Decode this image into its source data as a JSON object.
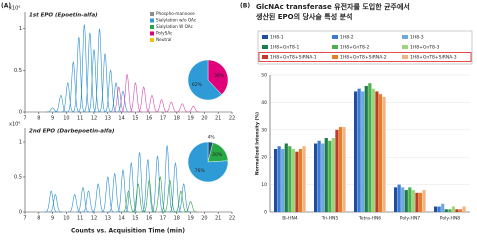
{
  "panel_a": {
    "label": "(A)",
    "x_label": "Counts vs. Acquisition Time (min)",
    "legend": [
      {
        "name": "Phospho-mannose",
        "color": "#8c8c8c"
      },
      {
        "name": "Sialylation w/o OAc",
        "color": "#2e9bd6"
      },
      {
        "name": "Sialylation W OAc",
        "color": "#27a844"
      },
      {
        "name": "PolySAc",
        "color": "#e0007a"
      },
      {
        "name": "Neutral",
        "color": "#f2c300"
      }
    ]
  },
  "panel_b": {
    "label": "(B)",
    "title": [
      "GlcNAc transferase 유전자를 도입한 균주에서",
      "생산된 EPO의 당사슬 특성 분석"
    ]
  },
  "chart_data": [
    {
      "type": "peaks",
      "title": "1st EPO (Epoetin-alfa)",
      "y_unit": "x10⁶",
      "xlim": [
        7,
        22
      ],
      "xticks": [
        7,
        8,
        9,
        10,
        11,
        12,
        13,
        14,
        15,
        16,
        17,
        18,
        19,
        20,
        21,
        22
      ],
      "ylim": [
        0,
        1.2
      ],
      "yticks": [
        0,
        0.5,
        1
      ],
      "series": [
        {
          "color": "#2a8fd0",
          "x": [
            9.0,
            9.6,
            10.1,
            10.5,
            10.9,
            11.3,
            11.7,
            12.0,
            12.4,
            12.8,
            13.2,
            13.6,
            14.1
          ],
          "values": [
            0.05,
            0.2,
            0.35,
            0.6,
            0.9,
            1.05,
            0.95,
            0.75,
            1.0,
            0.7,
            0.5,
            0.35,
            0.25
          ]
        },
        {
          "color": "#d24fb0",
          "x": [
            13.8,
            14.4,
            15.0,
            15.6,
            16.2,
            16.9,
            17.6,
            18.4,
            19.2
          ],
          "values": [
            0.3,
            0.45,
            0.35,
            0.3,
            0.2,
            0.15,
            0.12,
            0.1,
            0.07
          ]
        }
      ]
    },
    {
      "type": "peaks",
      "title": "2nd EPO (Darbepoetin-alfa)",
      "y_unit": "x10⁶",
      "xlim": [
        7,
        22
      ],
      "xticks": [
        7,
        8,
        9,
        10,
        11,
        12,
        13,
        14,
        15,
        16,
        17,
        18,
        19,
        20,
        21,
        22
      ],
      "ylim": [
        0,
        1.2
      ],
      "yticks": [
        0,
        0.5,
        1
      ],
      "series": [
        {
          "color": "#2a8fd0",
          "x": [
            8.9,
            9.2,
            10.6,
            11.2,
            11.6,
            12.3,
            13.0,
            13.5,
            14.1,
            14.7,
            15.3,
            15.9,
            16.6,
            17.3,
            17.9,
            18.5
          ],
          "values": [
            0.3,
            0.25,
            0.25,
            0.35,
            0.3,
            0.4,
            0.5,
            0.55,
            0.6,
            0.7,
            0.85,
            0.75,
            0.8,
            0.95,
            0.7,
            0.4
          ]
        },
        {
          "color": "#2f9e3f",
          "x": [
            14.5,
            15.2,
            16.0,
            16.8,
            17.5,
            18.3,
            19.0
          ],
          "values": [
            0.3,
            0.4,
            0.45,
            0.5,
            0.45,
            0.3,
            0.15
          ]
        }
      ]
    },
    {
      "type": "pie",
      "values": [
        38,
        62
      ],
      "value_labels": [
        "38%",
        "62%"
      ],
      "colors": [
        "#e0007a",
        "#2e9bd6"
      ]
    },
    {
      "type": "pie",
      "values": [
        4,
        20,
        76
      ],
      "value_labels": [
        "4%",
        "20%",
        "76%"
      ],
      "colors": [
        "#1a5276",
        "#27a844",
        "#2e9bd6"
      ]
    },
    {
      "type": "bar",
      "y_label": "Normalized Intensity (%)",
      "categories": [
        "Bi-HN4",
        "Tri-HN5",
        "Tetra-HN6",
        "Poly-HN7",
        "Poly-HN8"
      ],
      "ylim": [
        0,
        50
      ],
      "yticks": [
        0,
        10,
        20,
        30,
        40,
        50
      ],
      "grid": true,
      "highlight_row": 2,
      "series": [
        {
          "name": "1H8-1",
          "color": "#1f4e9c",
          "values": [
            23,
            25,
            44,
            9,
            2
          ]
        },
        {
          "name": "1H8-2",
          "color": "#3a7bd5",
          "values": [
            24,
            26,
            45,
            10,
            2
          ]
        },
        {
          "name": "1H8-3",
          "color": "#6fa8dc",
          "values": [
            23,
            25,
            44,
            9,
            3
          ]
        },
        {
          "name": "1H8+GnT8-1",
          "color": "#1e7b4a",
          "values": [
            25,
            27,
            46,
            8,
            1
          ]
        },
        {
          "name": "1H8+GnT8-2",
          "color": "#4caf50",
          "values": [
            24,
            26,
            47,
            9,
            1
          ]
        },
        {
          "name": "1H8+GnT8-3",
          "color": "#9bd77a",
          "values": [
            23,
            27,
            45,
            8,
            2
          ]
        },
        {
          "name": "1H8+GnT8+SiRNA-1",
          "color": "#c0392b",
          "values": [
            22,
            30,
            44,
            7,
            1
          ]
        },
        {
          "name": "1H8+GnT8+SiRNA-2",
          "color": "#e67e22",
          "values": [
            23,
            31,
            43,
            7,
            1
          ]
        },
        {
          "name": "1H8+GnT8+SiRNA-3",
          "color": "#f4b183",
          "values": [
            24,
            31,
            42,
            8,
            2
          ]
        }
      ]
    }
  ]
}
